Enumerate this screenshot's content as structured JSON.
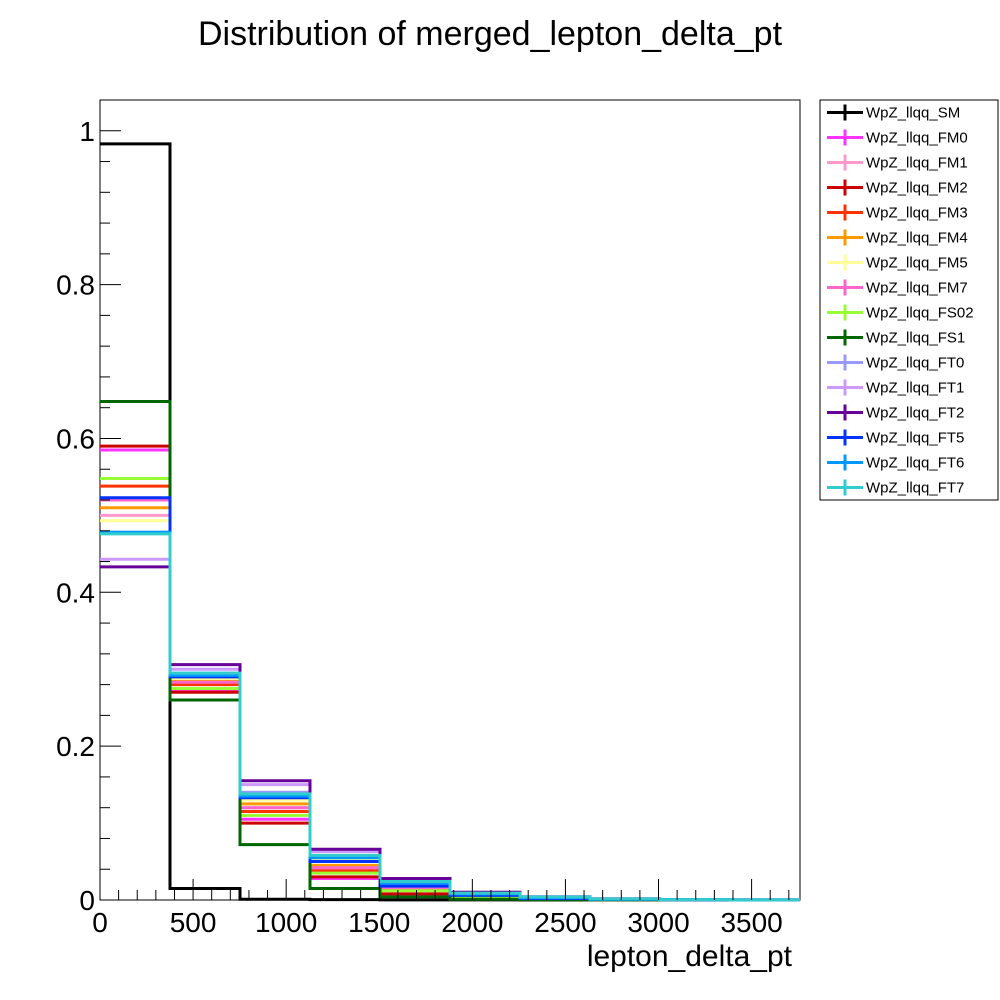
{
  "chart_data": {
    "type": "histogram",
    "title": "Distribution of merged_lepton_delta_pt",
    "xlabel": "lepton_delta_pt",
    "ylabel": "",
    "xlim": [
      0,
      3760
    ],
    "ylim": [
      0,
      1.04
    ],
    "x_ticks": [
      0,
      500,
      1000,
      1500,
      2000,
      2500,
      3000,
      3500
    ],
    "y_ticks": [
      0,
      0.2,
      0.4,
      0.6,
      0.8,
      1
    ],
    "bin_edges": [
      0,
      376,
      752,
      1128,
      1504,
      1880,
      2256,
      2632,
      3008,
      3384,
      3760
    ],
    "grid": false,
    "legend_position": "right",
    "series": [
      {
        "name": "WpZ_llqq_SM",
        "color": "#000000",
        "values": [
          0.983,
          0.015,
          0.001,
          0.0005,
          0.0002,
          0.0001,
          0.0,
          0.0,
          0.0,
          0.0
        ]
      },
      {
        "name": "WpZ_llqq_FM0",
        "color": "#ff33ff",
        "values": [
          0.585,
          0.272,
          0.105,
          0.028,
          0.008,
          0.002,
          0.0008,
          0.0003,
          0.0001,
          0.0
        ]
      },
      {
        "name": "WpZ_llqq_FM1",
        "color": "#ff99cc",
        "values": [
          0.5,
          0.285,
          0.12,
          0.04,
          0.015,
          0.005,
          0.002,
          0.001,
          0.0005,
          0.0
        ]
      },
      {
        "name": "WpZ_llqq_FM2",
        "color": "#cc0000",
        "values": [
          0.59,
          0.27,
          0.1,
          0.03,
          0.008,
          0.002,
          0.0008,
          0.0003,
          0.0001,
          0.0
        ]
      },
      {
        "name": "WpZ_llqq_FM3",
        "color": "#ff3300",
        "values": [
          0.538,
          0.28,
          0.115,
          0.038,
          0.015,
          0.005,
          0.002,
          0.001,
          0.0005,
          0.0
        ]
      },
      {
        "name": "WpZ_llqq_FM4",
        "color": "#ff9900",
        "values": [
          0.51,
          0.285,
          0.125,
          0.045,
          0.018,
          0.006,
          0.002,
          0.001,
          0.0005,
          0.0
        ]
      },
      {
        "name": "WpZ_llqq_FM5",
        "color": "#ffff99",
        "values": [
          0.493,
          0.288,
          0.13,
          0.052,
          0.02,
          0.008,
          0.003,
          0.001,
          0.0005,
          0.0
        ]
      },
      {
        "name": "WpZ_llqq_FM7",
        "color": "#ff66cc",
        "values": [
          0.52,
          0.283,
          0.12,
          0.042,
          0.016,
          0.006,
          0.002,
          0.001,
          0.0005,
          0.0
        ]
      },
      {
        "name": "WpZ_llqq_FS02",
        "color": "#99ff33",
        "values": [
          0.548,
          0.275,
          0.11,
          0.035,
          0.012,
          0.004,
          0.0015,
          0.0005,
          0.0002,
          0.0
        ]
      },
      {
        "name": "WpZ_llqq_FS1",
        "color": "#006600",
        "values": [
          0.648,
          0.26,
          0.072,
          0.015,
          0.004,
          0.001,
          0.0003,
          0.0001,
          0.0,
          0.0
        ]
      },
      {
        "name": "WpZ_llqq_FT0",
        "color": "#9999ff",
        "values": [
          0.478,
          0.295,
          0.14,
          0.058,
          0.024,
          0.009,
          0.004,
          0.0015,
          0.0005,
          0.0002
        ]
      },
      {
        "name": "WpZ_llqq_FT1",
        "color": "#cc99ff",
        "values": [
          0.443,
          0.3,
          0.15,
          0.063,
          0.026,
          0.01,
          0.004,
          0.0015,
          0.0005,
          0.0002
        ]
      },
      {
        "name": "WpZ_llqq_FT2",
        "color": "#660099",
        "values": [
          0.433,
          0.306,
          0.155,
          0.066,
          0.028,
          0.01,
          0.004,
          0.0015,
          0.0005,
          0.0002
        ]
      },
      {
        "name": "WpZ_llqq_FT5",
        "color": "#0033ff",
        "values": [
          0.523,
          0.29,
          0.133,
          0.05,
          0.018,
          0.006,
          0.002,
          0.001,
          0.0005,
          0.0
        ]
      },
      {
        "name": "WpZ_llqq_FT6",
        "color": "#0099ff",
        "values": [
          0.478,
          0.292,
          0.135,
          0.055,
          0.022,
          0.008,
          0.003,
          0.001,
          0.0005,
          0.0002
        ]
      },
      {
        "name": "WpZ_llqq_FT7",
        "color": "#33cccc",
        "values": [
          0.476,
          0.295,
          0.138,
          0.058,
          0.024,
          0.009,
          0.004,
          0.0015,
          0.0005,
          0.0002
        ]
      }
    ]
  }
}
